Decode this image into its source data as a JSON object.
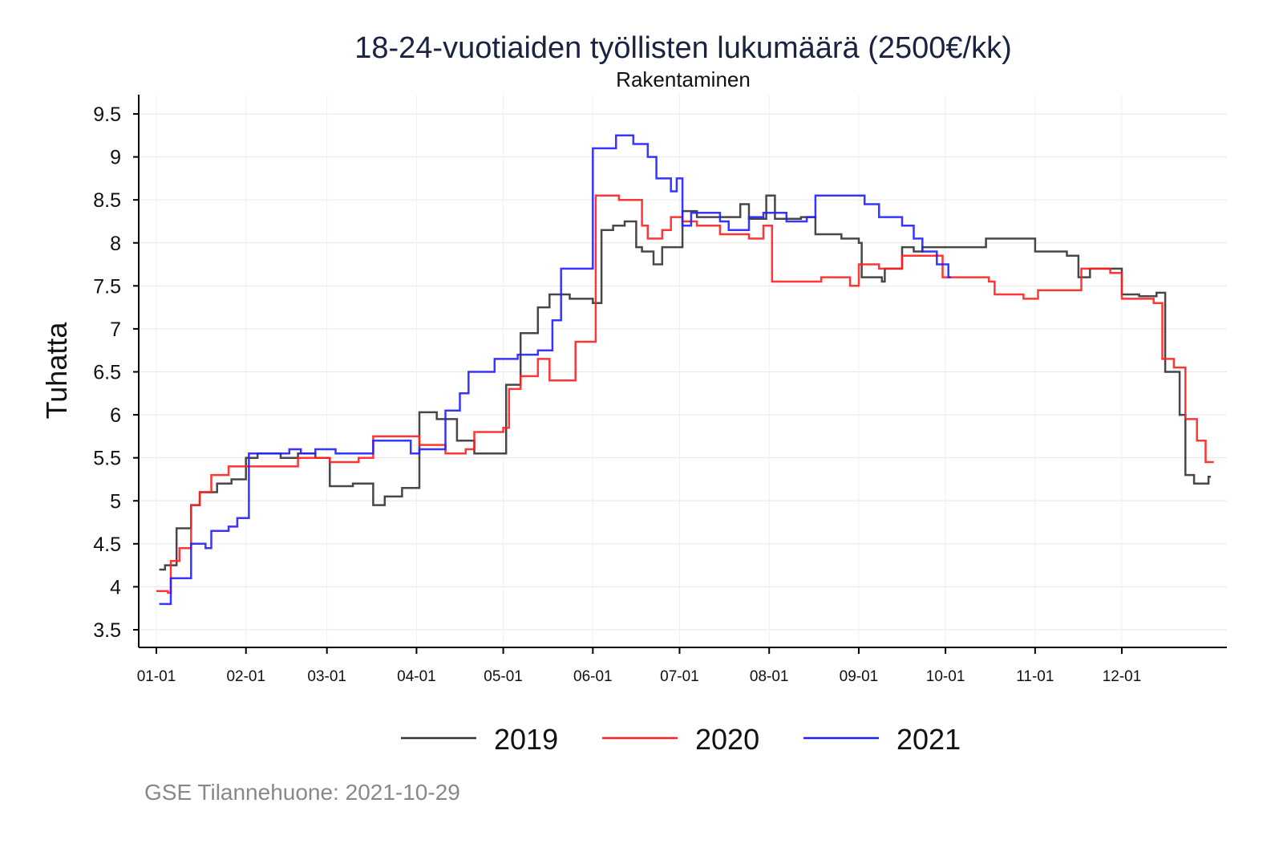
{
  "chart_data": {
    "type": "line",
    "step": true,
    "title": "18-24-vuotiaiden työllisten lukumäärä (2500€/kk)",
    "subtitle": "Rakentaminen",
    "xlabel": "",
    "ylabel": "Tuhatta",
    "ylim": [
      3.3,
      9.7
    ],
    "xlim": [
      -6,
      370
    ],
    "yticks": [
      3.5,
      4,
      4.5,
      5,
      5.5,
      6,
      6.5,
      7,
      7.5,
      8,
      8.5,
      9,
      9.5
    ],
    "ytick_labels": [
      "3.5",
      "4",
      "4.5",
      "5",
      "5.5",
      "6",
      "6.5",
      "7",
      "7.5",
      "8",
      "8.5",
      "9",
      "9.5"
    ],
    "xticks": [
      0,
      31,
      59,
      90,
      120,
      151,
      181,
      212,
      243,
      273,
      304,
      334
    ],
    "xtick_labels": [
      "01-01",
      "02-01",
      "03-01",
      "04-01",
      "05-01",
      "06-01",
      "07-01",
      "08-01",
      "09-01",
      "10-01",
      "11-01",
      "12-01"
    ],
    "grid": true,
    "legend_position": "bottom",
    "caption": "GSE Tilannehuone: 2021-10-29",
    "series": [
      {
        "name": "2019",
        "color": "#333333",
        "x": [
          1,
          3,
          7,
          12,
          15,
          21,
          26,
          31,
          35,
          43,
          49,
          55,
          60,
          68,
          75,
          79,
          85,
          91,
          97,
          104,
          110,
          117,
          121,
          126,
          132,
          136,
          143,
          151,
          154,
          158,
          162,
          166,
          168,
          172,
          175,
          178,
          182,
          187,
          196,
          202,
          205,
          211,
          214,
          223,
          228,
          233,
          237,
          243,
          244,
          251,
          252,
          258,
          262,
          265,
          273,
          279,
          287,
          295,
          304,
          315,
          319,
          323,
          330,
          334,
          340,
          346,
          349,
          354,
          356,
          359,
          364
        ],
        "y": [
          4.2,
          4.25,
          4.68,
          4.95,
          5.1,
          5.2,
          5.25,
          5.5,
          5.55,
          5.5,
          5.55,
          5.5,
          5.17,
          5.2,
          4.95,
          5.05,
          5.15,
          6.03,
          5.95,
          5.7,
          5.55,
          5.55,
          6.35,
          6.95,
          7.25,
          7.4,
          7.35,
          7.3,
          8.15,
          8.2,
          8.25,
          7.95,
          7.9,
          7.75,
          7.95,
          7.95,
          8.37,
          8.3,
          8.3,
          8.45,
          8.28,
          8.55,
          8.28,
          8.3,
          8.1,
          8.1,
          8.05,
          8.0,
          7.6,
          7.55,
          7.7,
          7.95,
          7.9,
          7.95,
          7.95,
          7.95,
          8.05,
          8.05,
          7.9,
          7.85,
          7.6,
          7.7,
          7.7,
          7.4,
          7.38,
          7.42,
          6.5,
          6.0,
          5.3,
          5.2,
          5.28
        ]
      },
      {
        "name": "2020",
        "color": "#ff2020",
        "x": [
          0,
          4,
          5,
          8,
          12,
          15,
          19,
          25,
          35,
          42,
          49,
          55,
          60,
          70,
          75,
          85,
          91,
          100,
          107,
          110,
          120,
          122,
          126,
          132,
          136,
          143,
          145,
          151,
          152,
          160,
          168,
          170,
          175,
          178,
          182,
          187,
          195,
          200,
          205,
          210,
          213,
          222,
          230,
          240,
          243,
          250,
          258,
          265,
          272,
          280,
          288,
          290,
          300,
          305,
          318,
          320,
          330,
          334,
          345,
          348,
          352,
          356,
          360,
          363,
          365
        ],
        "y": [
          3.95,
          3.93,
          4.3,
          4.45,
          4.95,
          5.1,
          5.3,
          5.4,
          5.4,
          5.4,
          5.5,
          5.5,
          5.45,
          5.5,
          5.75,
          5.75,
          5.65,
          5.55,
          5.6,
          5.8,
          5.85,
          6.3,
          6.45,
          6.65,
          6.4,
          6.4,
          6.85,
          6.85,
          8.55,
          8.5,
          8.2,
          8.05,
          8.15,
          8.3,
          8.25,
          8.2,
          8.1,
          8.1,
          8.05,
          8.2,
          7.55,
          7.55,
          7.6,
          7.5,
          7.75,
          7.7,
          7.85,
          7.85,
          7.6,
          7.6,
          7.55,
          7.4,
          7.35,
          7.45,
          7.45,
          7.7,
          7.65,
          7.35,
          7.3,
          6.65,
          6.55,
          5.95,
          5.7,
          5.45,
          5.45
        ]
      },
      {
        "name": "2021",
        "color": "#2020ff",
        "x": [
          1,
          4,
          5,
          11,
          12,
          17,
          19,
          25,
          28,
          32,
          40,
          45,
          46,
          50,
          55,
          62,
          68,
          75,
          82,
          88,
          91,
          96,
          100,
          105,
          108,
          115,
          117,
          125,
          132,
          137,
          140,
          148,
          151,
          157,
          159,
          163,
          165,
          170,
          173,
          178,
          180,
          182,
          185,
          195,
          198,
          205,
          210,
          218,
          225,
          228,
          240,
          245,
          250,
          258,
          262,
          265,
          270,
          274
        ],
        "y": [
          3.8,
          3.8,
          4.1,
          4.1,
          4.5,
          4.45,
          4.65,
          4.7,
          4.8,
          5.55,
          5.55,
          5.55,
          5.6,
          5.55,
          5.6,
          5.55,
          5.55,
          5.7,
          5.7,
          5.55,
          5.6,
          5.6,
          6.05,
          6.25,
          6.5,
          6.5,
          6.65,
          6.7,
          6.75,
          7.1,
          7.7,
          7.7,
          9.1,
          9.1,
          9.25,
          9.25,
          9.15,
          9.0,
          8.75,
          8.6,
          8.75,
          8.2,
          8.35,
          8.25,
          8.15,
          8.3,
          8.35,
          8.25,
          8.3,
          8.55,
          8.55,
          8.45,
          8.3,
          8.2,
          8.05,
          7.9,
          7.75,
          7.6
        ]
      }
    ]
  }
}
